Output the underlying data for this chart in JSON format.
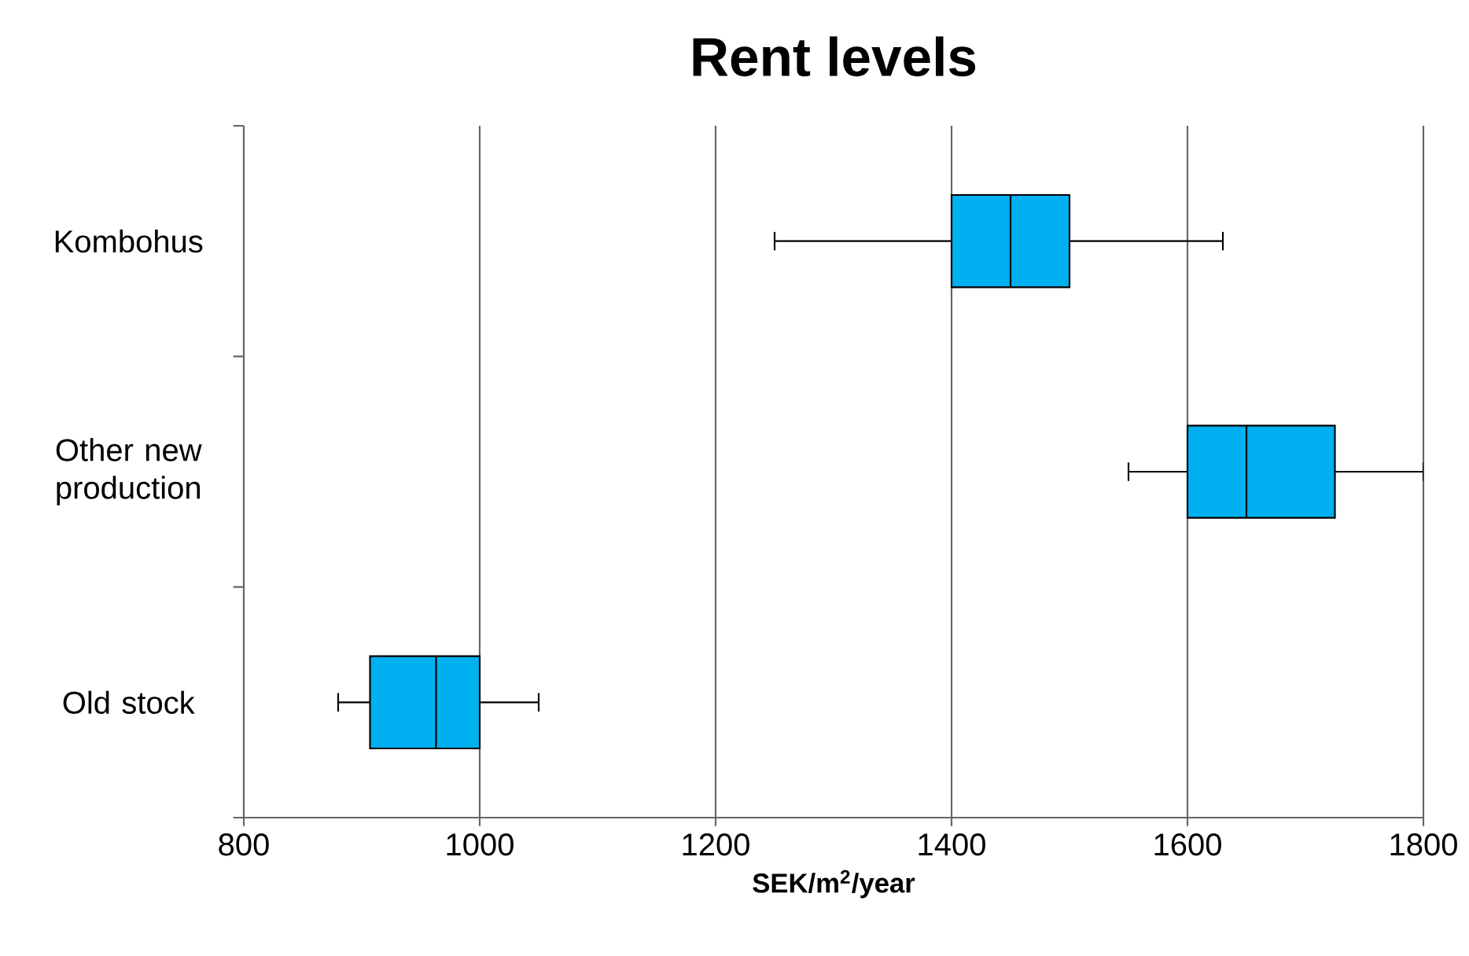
{
  "chart_data": {
    "type": "box",
    "title": "Rent levels",
    "xlabel": "SEK/m$^{2}$/year",
    "orientation": "horizontal",
    "categories": [
      "Kombohus",
      "Other new production",
      "Old stock"
    ],
    "boxes": [
      {
        "low": 1250,
        "q1": 1400,
        "median": 1450,
        "q3": 1500,
        "high": 1630
      },
      {
        "low": 1550,
        "q1": 1600,
        "median": 1650,
        "q3": 1725,
        "high": 1800
      },
      {
        "low": 880,
        "q1": 907,
        "median": 963,
        "q3": 1000,
        "high": 1050
      }
    ],
    "color": "#00b0f0",
    "xlim": [
      800,
      1800
    ],
    "xticks": [
      800,
      1000,
      1200,
      1400,
      1600,
      1800
    ],
    "grid": "x"
  }
}
